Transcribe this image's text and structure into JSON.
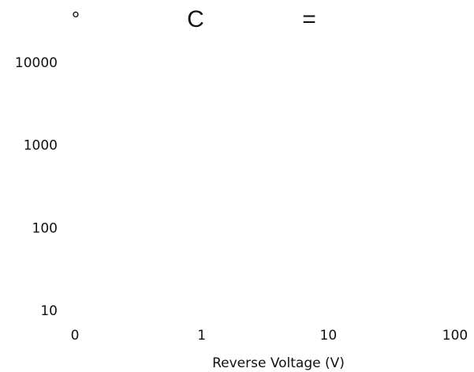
{
  "chart_data": {
    "type": "line",
    "title_parts": [
      "°",
      "C",
      "="
    ],
    "xlabel": "Reverse Voltage (V)",
    "ylabel": "",
    "x_scale": "log",
    "y_scale": "log",
    "x_ticks": [
      {
        "value": 0,
        "label": "0"
      },
      {
        "value": 1,
        "label": "1"
      },
      {
        "value": 10,
        "label": "10"
      },
      {
        "value": 100,
        "label": "100"
      }
    ],
    "y_ticks": [
      {
        "value": 10,
        "label": "10"
      },
      {
        "value": 100,
        "label": "100"
      },
      {
        "value": 1000,
        "label": "1000"
      },
      {
        "value": 10000,
        "label": "10000"
      }
    ],
    "series": [],
    "grid": false,
    "legend": "none"
  }
}
